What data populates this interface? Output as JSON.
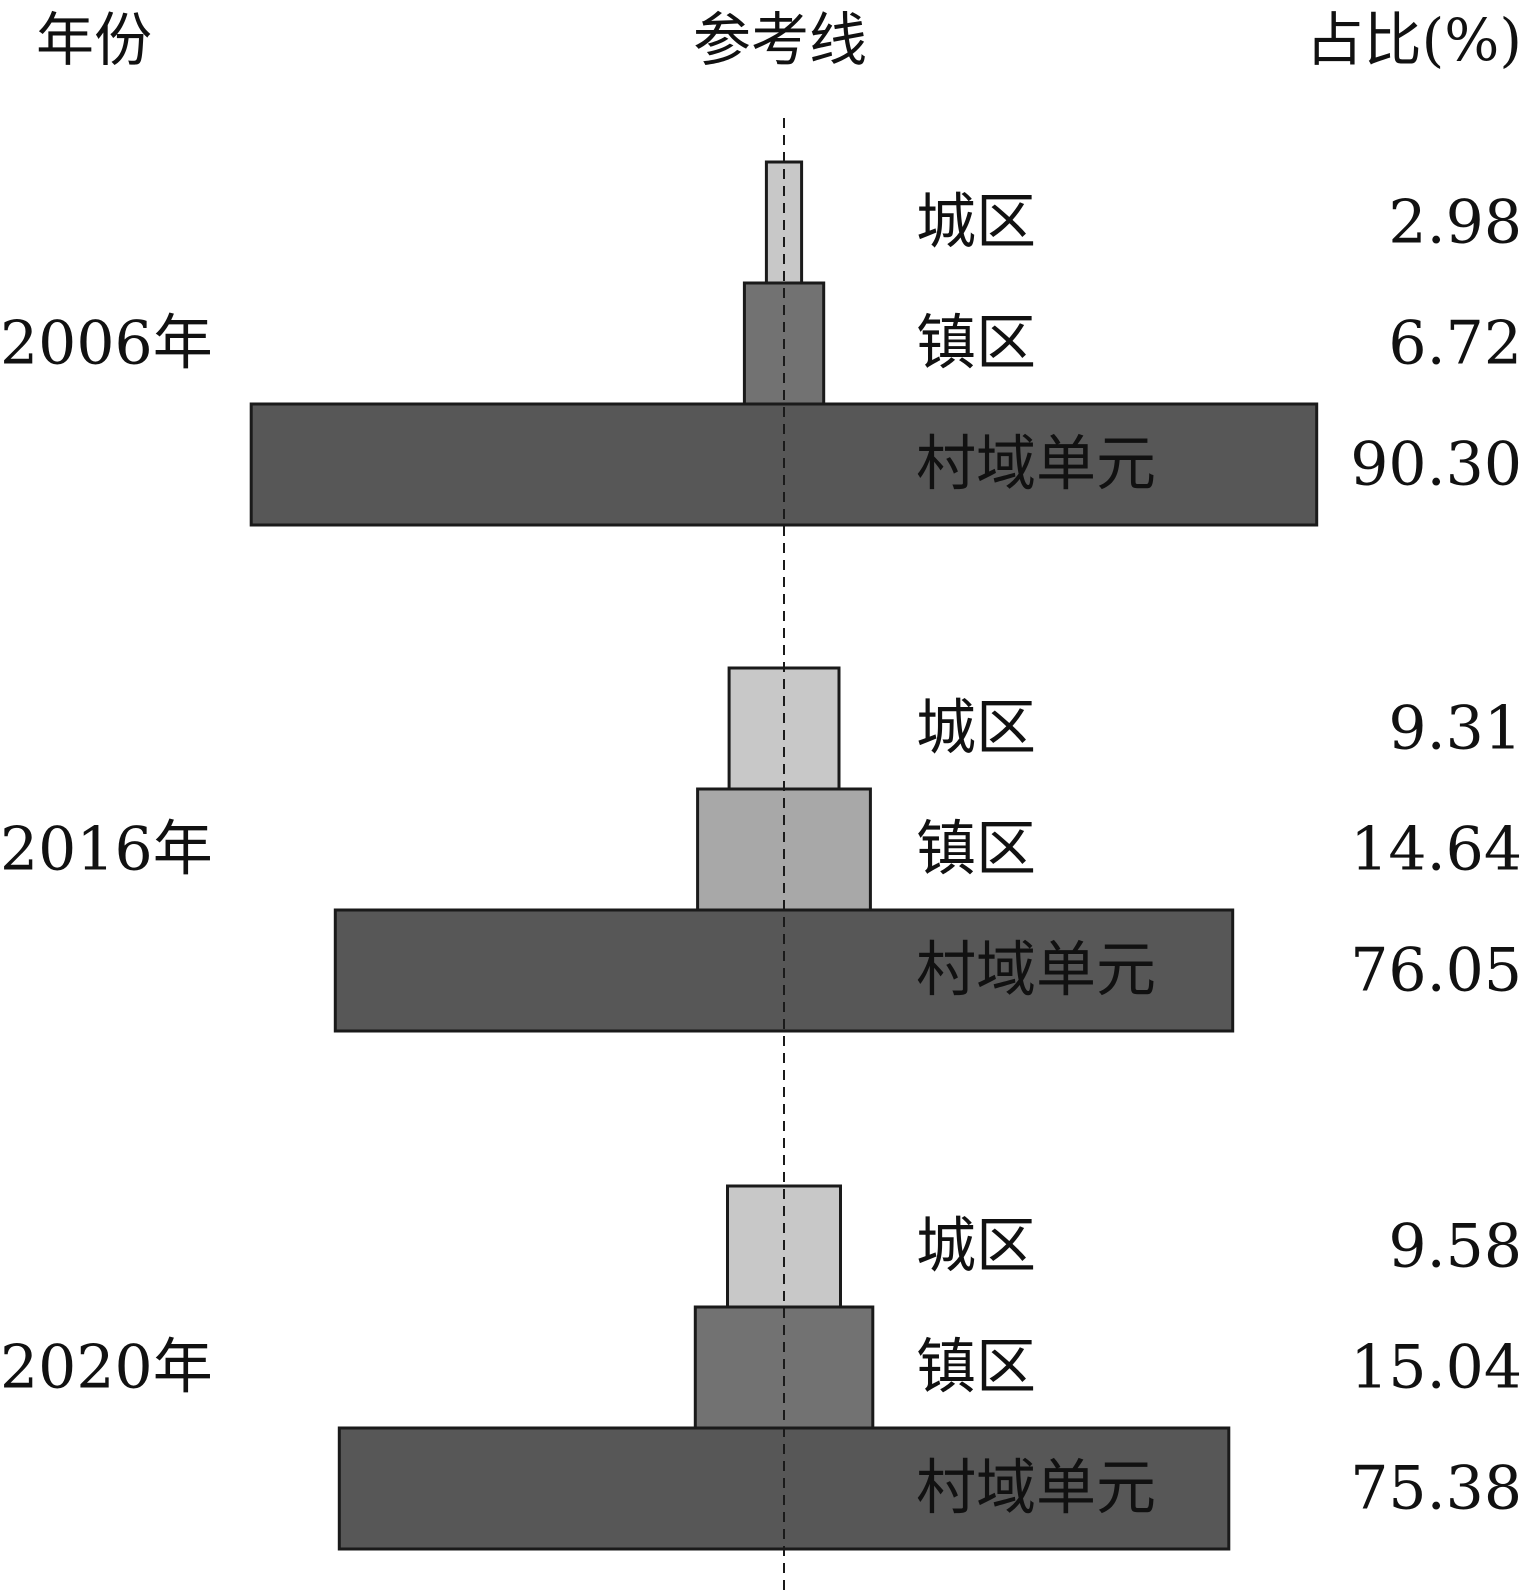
{
  "headers": {
    "year": "年份",
    "reference": "参考线",
    "share": "占比(%)"
  },
  "chart_data": {
    "type": "bar",
    "layout": "centered stacked pyramid per year",
    "category_labels": [
      "城区",
      "镇区",
      "村域单元"
    ],
    "colors": {
      "城区": "#c8c8c8",
      "镇区_2006": "#727272",
      "镇区_2016": "#a8a8a8",
      "镇区_2020": "#727272",
      "村域单元": "#575757"
    },
    "groups": [
      {
        "year_label": "2006年",
        "bars": [
          {
            "category": "城区",
            "value": 2.98,
            "value_label": "2.98",
            "color": "#c8c8c8"
          },
          {
            "category": "镇区",
            "value": 6.72,
            "value_label": "6.72",
            "color": "#727272"
          },
          {
            "category": "村域单元",
            "value": 90.3,
            "value_label": "90.30",
            "color": "#575757"
          }
        ]
      },
      {
        "year_label": "2016年",
        "bars": [
          {
            "category": "城区",
            "value": 9.31,
            "value_label": "9.31",
            "color": "#c8c8c8"
          },
          {
            "category": "镇区",
            "value": 14.64,
            "value_label": "14.64",
            "color": "#a8a8a8"
          },
          {
            "category": "村域单元",
            "value": 76.05,
            "value_label": "76.05",
            "color": "#575757"
          }
        ]
      },
      {
        "year_label": "2020年",
        "bars": [
          {
            "category": "城区",
            "value": 9.58,
            "value_label": "9.58",
            "color": "#c8c8c8"
          },
          {
            "category": "镇区",
            "value": 15.04,
            "value_label": "15.04",
            "color": "#727272"
          },
          {
            "category": "村域单元",
            "value": 75.38,
            "value_label": "75.38",
            "color": "#575757"
          }
        ]
      }
    ]
  }
}
